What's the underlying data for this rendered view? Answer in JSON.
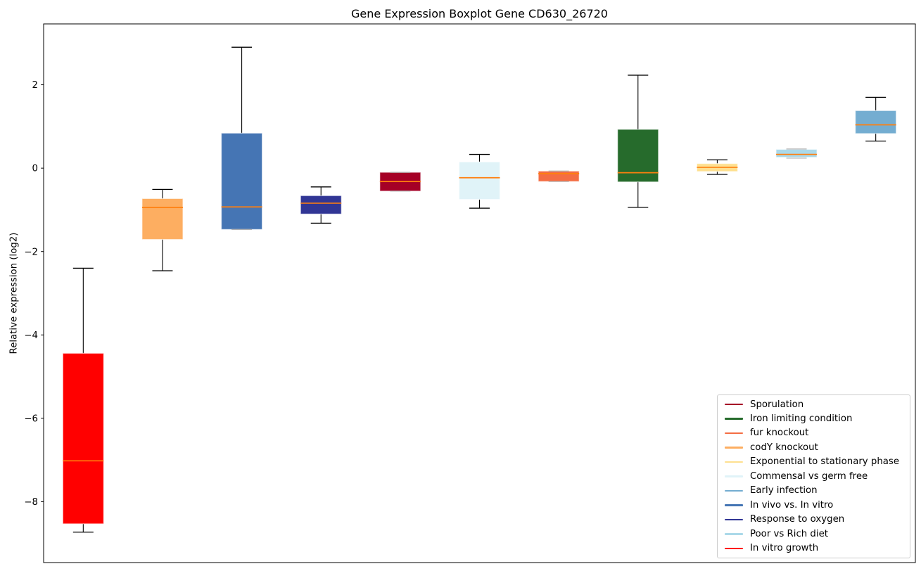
{
  "figure": {
    "title": "Gene Expression Boxplot Gene CD630_26720"
  },
  "chart_data": {
    "type": "boxplot",
    "title": "Gene Expression Boxplot Gene CD630_26720",
    "xlabel": "",
    "ylabel": "Relative expression (log2)",
    "ylim": [
      -9.46,
      3.46
    ],
    "yticks": [
      2,
      0,
      -2,
      -4,
      -6,
      -8
    ],
    "grid": false,
    "x_tick_labels_visible": false,
    "median_color": "#ff7f0e",
    "whisker_color": "#000000",
    "degenerate_cap_color": "#b3b3b3",
    "legend_position": "lower right",
    "boxes": [
      {
        "label": "In vitro growth",
        "color": "#ff0000",
        "whisker_low": -8.73,
        "q1": -8.53,
        "median": -7.02,
        "q3": -4.44,
        "whisker_high": -2.4
      },
      {
        "label": "codY knockout",
        "color": "#fdae61",
        "whisker_low": -2.46,
        "q1": -1.71,
        "median": -0.94,
        "q3": -0.73,
        "whisker_high": -0.51
      },
      {
        "label": "In vivo vs. In vitro",
        "color": "#4575b4",
        "whisker_low": -1.47,
        "q1": -1.47,
        "median": -0.93,
        "q3": 0.84,
        "whisker_high": 2.9
      },
      {
        "label": "Response to oxygen",
        "color": "#313695",
        "whisker_low": -1.32,
        "q1": -1.1,
        "median": -0.84,
        "q3": -0.66,
        "whisker_high": -0.45
      },
      {
        "label": "Sporulation",
        "color": "#a50026",
        "whisker_low": -0.55,
        "q1": -0.55,
        "median": -0.32,
        "q3": -0.1,
        "whisker_high": -0.1
      },
      {
        "label": "Commensal vs germ free",
        "color": "#e0f3f8",
        "whisker_low": -0.96,
        "q1": -0.75,
        "median": -0.23,
        "q3": 0.15,
        "whisker_high": 0.33
      },
      {
        "label": "fur knockout",
        "color": "#f46d43",
        "whisker_low": -0.32,
        "q1": -0.32,
        "median": -0.13,
        "q3": -0.07,
        "whisker_high": -0.07
      },
      {
        "label": "Iron limiting condition",
        "color": "#266b2c",
        "whisker_low": -0.94,
        "q1": -0.33,
        "median": -0.11,
        "q3": 0.93,
        "whisker_high": 2.23
      },
      {
        "label": "Exponential to stationary phase",
        "color": "#fee090",
        "whisker_low": -0.15,
        "q1": -0.08,
        "median": 0.02,
        "q3": 0.11,
        "whisker_high": 0.2
      },
      {
        "label": "Poor vs Rich diet",
        "color": "#abd9e9",
        "whisker_low": 0.24,
        "q1": 0.26,
        "median": 0.33,
        "q3": 0.45,
        "whisker_high": 0.46
      },
      {
        "label": "Early infection",
        "color": "#74add1",
        "whisker_low": 0.65,
        "q1": 0.83,
        "median": 1.04,
        "q3": 1.38,
        "whisker_high": 1.7
      }
    ],
    "legend": [
      {
        "label": "Sporulation",
        "color": "#a50026"
      },
      {
        "label": "Iron limiting condition",
        "color": "#266b2c"
      },
      {
        "label": "fur knockout",
        "color": "#f46d43"
      },
      {
        "label": "codY knockout",
        "color": "#fdae61"
      },
      {
        "label": "Exponential to stationary phase",
        "color": "#fee090"
      },
      {
        "label": "Commensal vs germ free",
        "color": "#e0f3f8"
      },
      {
        "label": "Early infection",
        "color": "#74add1"
      },
      {
        "label": "In vivo vs. In vitro",
        "color": "#4575b4"
      },
      {
        "label": "Response to oxygen",
        "color": "#313695"
      },
      {
        "label": "Poor vs Rich diet",
        "color": "#abd9e9"
      },
      {
        "label": "In vitro growth",
        "color": "#ff0000"
      }
    ]
  }
}
